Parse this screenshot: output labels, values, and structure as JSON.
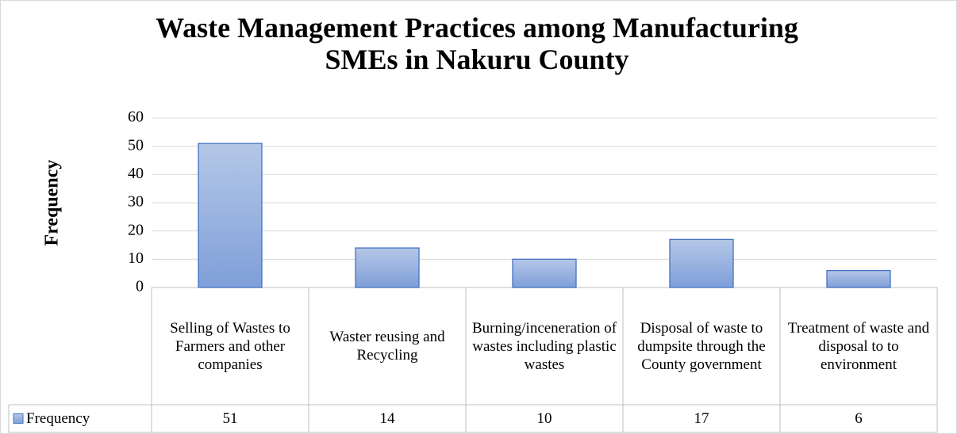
{
  "chart_data": {
    "type": "bar",
    "title": "Waste Management Practices among Manufacturing SMEs in Nakuru County",
    "ylabel": "Frequency",
    "categories": [
      "Selling of Wastes to Farmers and other companies",
      "Waster reusing and Recycling",
      "Burning/inceneration of wastes including plastic wastes",
      "Disposal of waste to dumpsite through the County government",
      "Treatment of waste and disposal to to environment"
    ],
    "series": [
      {
        "name": "Frequency",
        "color": "#8eaadb",
        "values": [
          51,
          14,
          10,
          17,
          6
        ]
      }
    ],
    "ylim": [
      0,
      60
    ],
    "yticks": [
      0,
      10,
      20,
      30,
      40,
      50,
      60
    ],
    "grid": true,
    "data_table": true
  }
}
